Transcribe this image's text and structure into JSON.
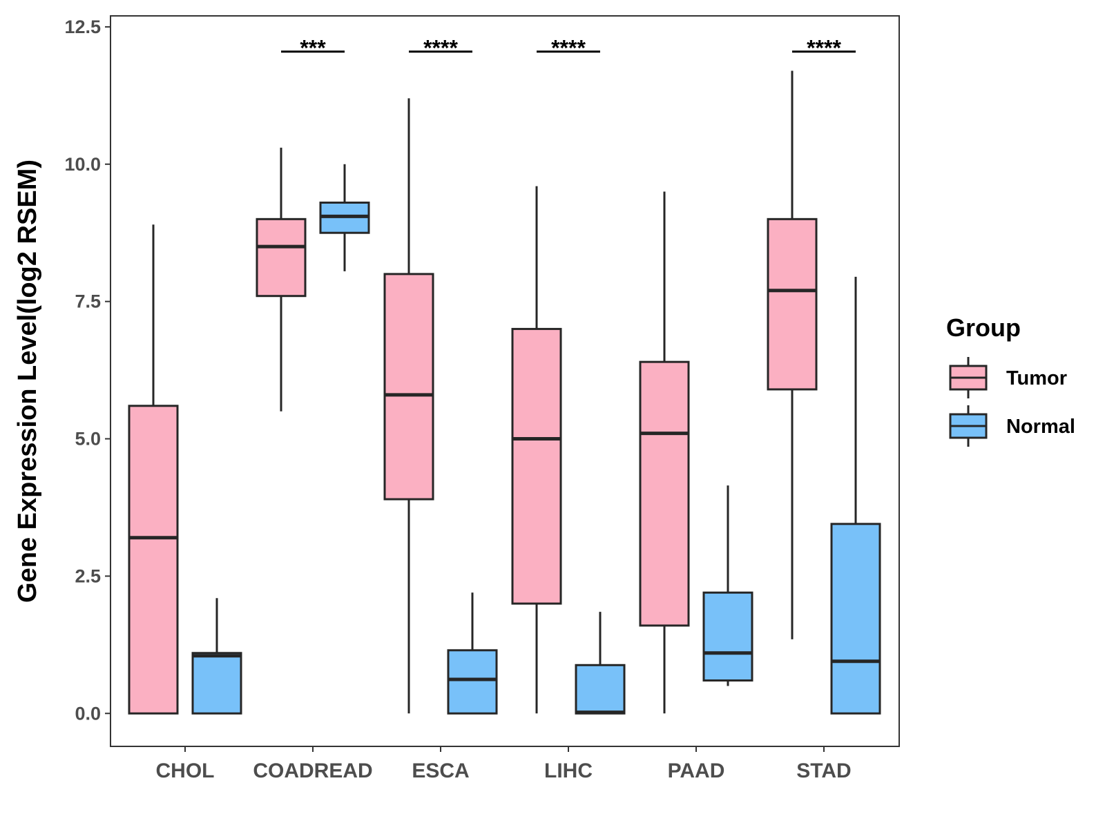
{
  "chart_data": {
    "type": "boxplot",
    "title": "",
    "xlabel": "",
    "ylabel": "Gene Expression Level(log2 RSEM)",
    "ylim": [
      -0.6,
      12.7
    ],
    "yticks": [
      0.0,
      2.5,
      5.0,
      7.5,
      10.0,
      12.5
    ],
    "ytick_labels": [
      "0.0",
      "2.5",
      "5.0",
      "7.5",
      "10.0",
      "12.5"
    ],
    "grid": false,
    "categories": [
      "CHOL",
      "COADREAD",
      "ESCA",
      "LIHC",
      "PAAD",
      "STAD"
    ],
    "legend": {
      "title": "Group",
      "position": "right",
      "entries": [
        "Tumor",
        "Normal"
      ]
    },
    "colors": {
      "Tumor": "#FBB0C2",
      "Normal": "#78C1F9",
      "outline": "#262626"
    },
    "series": [
      {
        "name": "Tumor",
        "boxes": [
          {
            "min": 0.0,
            "q1": 0.0,
            "median": 3.2,
            "q3": 5.6,
            "max": 8.9
          },
          {
            "min": 5.5,
            "q1": 7.6,
            "median": 8.5,
            "q3": 9.0,
            "max": 10.3
          },
          {
            "min": 0.0,
            "q1": 3.9,
            "median": 5.8,
            "q3": 8.0,
            "max": 11.2
          },
          {
            "min": 0.0,
            "q1": 2.0,
            "median": 5.0,
            "q3": 7.0,
            "max": 9.6
          },
          {
            "min": 0.0,
            "q1": 1.6,
            "median": 5.1,
            "q3": 6.4,
            "max": 9.5
          },
          {
            "min": 1.35,
            "q1": 5.9,
            "median": 7.7,
            "q3": 9.0,
            "max": 11.7
          }
        ]
      },
      {
        "name": "Normal",
        "boxes": [
          {
            "min": 0.0,
            "q1": 0.0,
            "median": 1.05,
            "q3": 1.1,
            "max": 2.1
          },
          {
            "min": 8.05,
            "q1": 8.75,
            "median": 9.05,
            "q3": 9.3,
            "max": 10.0
          },
          {
            "min": 0.0,
            "q1": 0.0,
            "median": 0.62,
            "q3": 1.15,
            "max": 2.2
          },
          {
            "min": 0.0,
            "q1": 0.0,
            "median": 0.02,
            "q3": 0.88,
            "max": 1.85
          },
          {
            "min": 0.5,
            "q1": 0.6,
            "median": 1.1,
            "q3": 2.2,
            "max": 4.15
          },
          {
            "min": 0.0,
            "q1": 0.0,
            "median": 0.95,
            "q3": 3.45,
            "max": 7.95
          }
        ]
      }
    ],
    "significance": [
      {
        "category": "COADREAD",
        "label": "***",
        "y": 12.05
      },
      {
        "category": "ESCA",
        "label": "****",
        "y": 12.05
      },
      {
        "category": "LIHC",
        "label": "****",
        "y": 12.05
      },
      {
        "category": "STAD",
        "label": "****",
        "y": 12.05
      }
    ]
  }
}
